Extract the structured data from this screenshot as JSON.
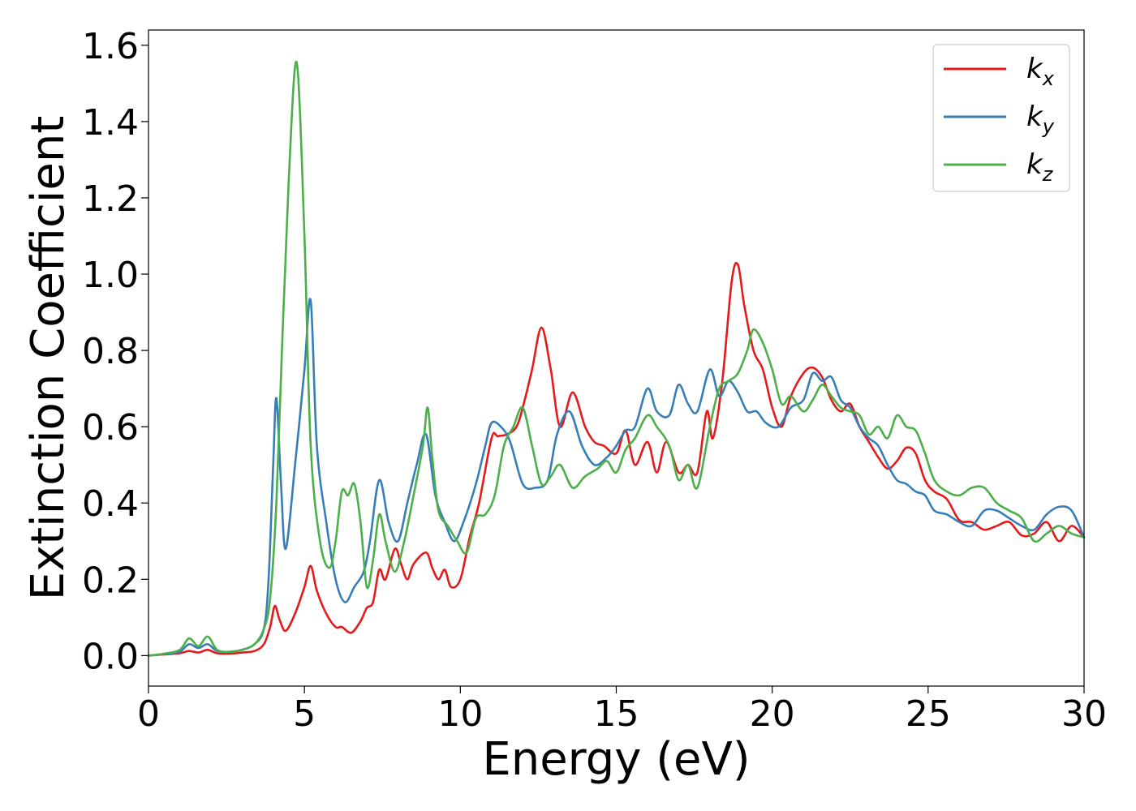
{
  "chart_data": {
    "type": "line",
    "title": "",
    "xlabel": "Energy (eV)",
    "ylabel": "Extinction Coefficient",
    "xlim": [
      0,
      30
    ],
    "ylim": [
      -0.08,
      1.64
    ],
    "xticks": [
      0,
      5,
      10,
      15,
      20,
      25,
      30
    ],
    "xtick_labels": [
      "0",
      "5",
      "10",
      "15",
      "20",
      "25",
      "30"
    ],
    "yticks": [
      0.0,
      0.2,
      0.4,
      0.6,
      0.8,
      1.0,
      1.2,
      1.4,
      1.6
    ],
    "ytick_labels": [
      "0.0",
      "0.2",
      "0.4",
      "0.6",
      "0.8",
      "1.0",
      "1.2",
      "1.4",
      "1.6"
    ],
    "grid": false,
    "legend_position": "top-right",
    "series": [
      {
        "name": "k_x",
        "label_base": "k",
        "label_sub": "x",
        "color": "#e41a1c",
        "x": [
          0,
          0.5,
          1,
          1.3,
          1.6,
          1.9,
          2.2,
          2.6,
          3,
          3.4,
          3.7,
          3.9,
          4.05,
          4.2,
          4.4,
          4.7,
          5.0,
          5.2,
          5.4,
          5.7,
          6.0,
          6.2,
          6.5,
          6.8,
          7.0,
          7.2,
          7.4,
          7.6,
          7.9,
          8.1,
          8.3,
          8.5,
          8.9,
          9.1,
          9.3,
          9.5,
          9.7,
          10.0,
          10.3,
          10.6,
          11.0,
          11.2,
          11.5,
          11.8,
          12.0,
          12.3,
          12.6,
          12.9,
          13.2,
          13.6,
          14.0,
          14.3,
          14.6,
          15.0,
          15.3,
          15.6,
          16.0,
          16.3,
          16.6,
          17.0,
          17.3,
          17.6,
          17.9,
          18.1,
          18.4,
          18.7,
          18.9,
          19.1,
          19.4,
          19.7,
          20.0,
          20.3,
          20.6,
          21.0,
          21.3,
          21.6,
          21.9,
          22.2,
          22.5,
          22.8,
          23.1,
          23.4,
          23.7,
          24.0,
          24.3,
          24.6,
          24.9,
          25.2,
          25.6,
          26.0,
          26.4,
          26.8,
          27.2,
          27.6,
          28.0,
          28.4,
          28.8,
          29.2,
          29.6,
          30.0
        ],
        "y": [
          0,
          0.003,
          0.006,
          0.012,
          0.008,
          0.015,
          0.006,
          0.005,
          0.008,
          0.012,
          0.03,
          0.075,
          0.13,
          0.095,
          0.065,
          0.11,
          0.18,
          0.235,
          0.17,
          0.11,
          0.075,
          0.075,
          0.06,
          0.09,
          0.125,
          0.14,
          0.225,
          0.2,
          0.28,
          0.24,
          0.2,
          0.24,
          0.27,
          0.23,
          0.2,
          0.225,
          0.18,
          0.2,
          0.31,
          0.4,
          0.57,
          0.575,
          0.58,
          0.6,
          0.65,
          0.75,
          0.86,
          0.75,
          0.6,
          0.69,
          0.6,
          0.56,
          0.55,
          0.53,
          0.59,
          0.5,
          0.56,
          0.48,
          0.56,
          0.48,
          0.5,
          0.48,
          0.64,
          0.57,
          0.72,
          0.98,
          1.025,
          0.92,
          0.8,
          0.75,
          0.65,
          0.6,
          0.68,
          0.74,
          0.755,
          0.73,
          0.67,
          0.64,
          0.66,
          0.6,
          0.56,
          0.52,
          0.49,
          0.51,
          0.545,
          0.53,
          0.46,
          0.43,
          0.41,
          0.355,
          0.35,
          0.33,
          0.34,
          0.35,
          0.315,
          0.32,
          0.35,
          0.3,
          0.34,
          0.31
        ]
      },
      {
        "name": "k_y",
        "label_base": "k",
        "label_sub": "y",
        "color": "#377eb8",
        "x": [
          0,
          0.5,
          1,
          1.3,
          1.6,
          1.9,
          2.2,
          2.6,
          3,
          3.4,
          3.7,
          3.85,
          4.0,
          4.1,
          4.25,
          4.4,
          4.7,
          5.0,
          5.2,
          5.4,
          5.7,
          6.0,
          6.3,
          6.6,
          6.9,
          7.1,
          7.4,
          7.7,
          8.0,
          8.3,
          8.6,
          8.9,
          9.2,
          9.5,
          9.8,
          10.1,
          10.5,
          10.8,
          11.0,
          11.3,
          11.6,
          12.0,
          12.4,
          12.8,
          13.1,
          13.5,
          13.9,
          14.3,
          14.7,
          15.0,
          15.3,
          15.6,
          16.0,
          16.3,
          16.7,
          17.0,
          17.3,
          17.6,
          18.0,
          18.3,
          18.6,
          18.9,
          19.2,
          19.5,
          19.8,
          20.2,
          20.6,
          21.0,
          21.3,
          21.6,
          21.9,
          22.2,
          22.5,
          22.8,
          23.1,
          23.4,
          23.7,
          24.0,
          24.3,
          24.6,
          24.9,
          25.2,
          25.6,
          26.0,
          26.4,
          26.8,
          27.2,
          27.6,
          28.0,
          28.4,
          28.8,
          29.2,
          29.6,
          30.0
        ],
        "y": [
          0,
          0.004,
          0.01,
          0.03,
          0.02,
          0.03,
          0.012,
          0.01,
          0.015,
          0.03,
          0.07,
          0.2,
          0.5,
          0.675,
          0.45,
          0.28,
          0.5,
          0.75,
          0.93,
          0.55,
          0.35,
          0.2,
          0.14,
          0.18,
          0.22,
          0.3,
          0.46,
          0.35,
          0.3,
          0.4,
          0.5,
          0.58,
          0.42,
          0.35,
          0.3,
          0.35,
          0.45,
          0.55,
          0.61,
          0.6,
          0.56,
          0.45,
          0.44,
          0.46,
          0.58,
          0.64,
          0.55,
          0.5,
          0.52,
          0.55,
          0.59,
          0.6,
          0.7,
          0.64,
          0.63,
          0.71,
          0.66,
          0.64,
          0.75,
          0.68,
          0.72,
          0.69,
          0.64,
          0.64,
          0.61,
          0.6,
          0.65,
          0.67,
          0.74,
          0.72,
          0.73,
          0.67,
          0.65,
          0.6,
          0.57,
          0.55,
          0.5,
          0.46,
          0.45,
          0.43,
          0.42,
          0.38,
          0.37,
          0.35,
          0.34,
          0.38,
          0.38,
          0.36,
          0.34,
          0.33,
          0.37,
          0.39,
          0.38,
          0.31
        ]
      },
      {
        "name": "k_z",
        "label_base": "k",
        "label_sub": "z",
        "color": "#4daf4a",
        "x": [
          0,
          0.5,
          1,
          1.3,
          1.6,
          1.9,
          2.2,
          2.6,
          3,
          3.4,
          3.7,
          3.9,
          4.1,
          4.3,
          4.5,
          4.75,
          5.0,
          5.2,
          5.5,
          5.8,
          6.0,
          6.2,
          6.4,
          6.6,
          6.8,
          7.0,
          7.2,
          7.4,
          7.6,
          7.9,
          8.2,
          8.5,
          8.8,
          8.95,
          9.1,
          9.3,
          9.6,
          9.9,
          10.2,
          10.5,
          10.8,
          11.1,
          11.4,
          11.7,
          12.0,
          12.3,
          12.6,
          12.9,
          13.2,
          13.6,
          14.0,
          14.4,
          14.7,
          15.0,
          15.3,
          15.6,
          16.0,
          16.3,
          16.7,
          17.0,
          17.3,
          17.6,
          18.0,
          18.3,
          18.6,
          18.9,
          19.2,
          19.4,
          19.7,
          20.0,
          20.3,
          20.6,
          21.0,
          21.3,
          21.6,
          21.9,
          22.2,
          22.5,
          22.8,
          23.1,
          23.4,
          23.7,
          24.0,
          24.3,
          24.6,
          24.9,
          25.2,
          25.6,
          26.0,
          26.4,
          26.8,
          27.2,
          27.6,
          28.0,
          28.4,
          28.8,
          29.2,
          29.6,
          30.0
        ],
        "y": [
          0,
          0.005,
          0.015,
          0.045,
          0.025,
          0.05,
          0.015,
          0.01,
          0.015,
          0.03,
          0.07,
          0.15,
          0.4,
          0.85,
          1.25,
          1.555,
          1.1,
          0.55,
          0.3,
          0.23,
          0.3,
          0.43,
          0.42,
          0.45,
          0.35,
          0.18,
          0.25,
          0.37,
          0.3,
          0.22,
          0.3,
          0.42,
          0.55,
          0.65,
          0.52,
          0.38,
          0.34,
          0.3,
          0.27,
          0.36,
          0.37,
          0.42,
          0.55,
          0.6,
          0.65,
          0.55,
          0.45,
          0.47,
          0.5,
          0.44,
          0.47,
          0.49,
          0.51,
          0.48,
          0.54,
          0.57,
          0.63,
          0.6,
          0.55,
          0.46,
          0.5,
          0.44,
          0.6,
          0.7,
          0.72,
          0.74,
          0.8,
          0.855,
          0.82,
          0.75,
          0.66,
          0.68,
          0.64,
          0.67,
          0.71,
          0.68,
          0.65,
          0.64,
          0.63,
          0.58,
          0.6,
          0.57,
          0.63,
          0.6,
          0.59,
          0.53,
          0.46,
          0.43,
          0.42,
          0.44,
          0.44,
          0.4,
          0.38,
          0.36,
          0.3,
          0.32,
          0.34,
          0.32,
          0.31
        ]
      }
    ]
  }
}
